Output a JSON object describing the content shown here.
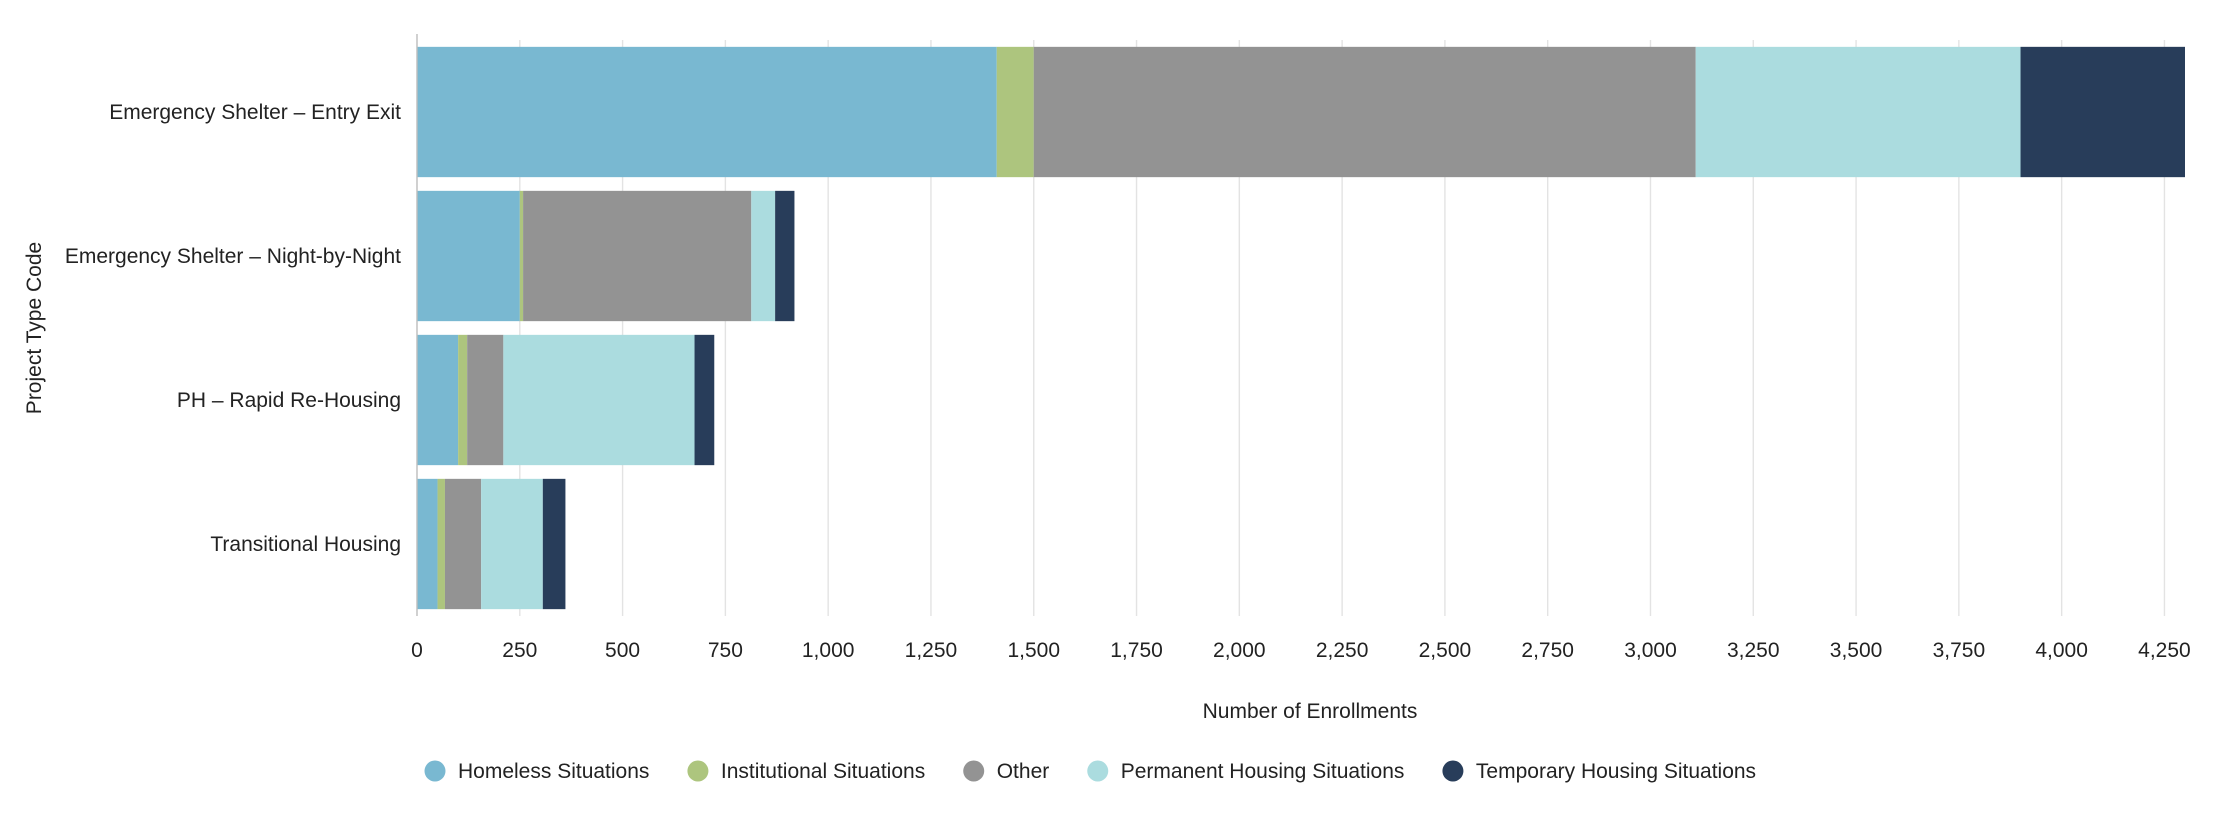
{
  "chart_data": {
    "type": "bar",
    "orientation": "horizontal",
    "stacked": true,
    "categories": [
      "Emergency Shelter – Entry Exit",
      "Emergency Shelter – Night-by-Night",
      "PH – Rapid Re-Housing",
      "Transitional Housing"
    ],
    "series": [
      {
        "name": "Homeless Situations",
        "color": "#79b8d1",
        "values": [
          1410,
          250,
          100,
          50
        ]
      },
      {
        "name": "Institutional Situations",
        "color": "#adc57e",
        "values": [
          90,
          8,
          22,
          18
        ]
      },
      {
        "name": "Other",
        "color": "#939393",
        "values": [
          1610,
          555,
          88,
          88
        ]
      },
      {
        "name": "Permanent Housing Situations",
        "color": "#abdcdf",
        "values": [
          790,
          58,
          465,
          150
        ]
      },
      {
        "name": "Temporary Housing Situations",
        "color": "#283d5a",
        "values": [
          400,
          47,
          48,
          55
        ]
      }
    ],
    "xlabel": "Number of Enrollments",
    "ylabel": "Project Type Code",
    "xlim": [
      0,
      4300
    ],
    "x_ticks": [
      0,
      250,
      500,
      750,
      1000,
      1250,
      1500,
      1750,
      2000,
      2250,
      2500,
      2750,
      3000,
      3250,
      3500,
      3750,
      4000,
      4250
    ],
    "x_tick_labels": [
      "0",
      "250",
      "500",
      "750",
      "1,000",
      "1,250",
      "1,500",
      "1,750",
      "2,000",
      "2,250",
      "2,500",
      "2,750",
      "3,000",
      "3,250",
      "3,500",
      "3,750",
      "4,000",
      "4,250"
    ],
    "grid": true,
    "legend_position": "bottom"
  }
}
